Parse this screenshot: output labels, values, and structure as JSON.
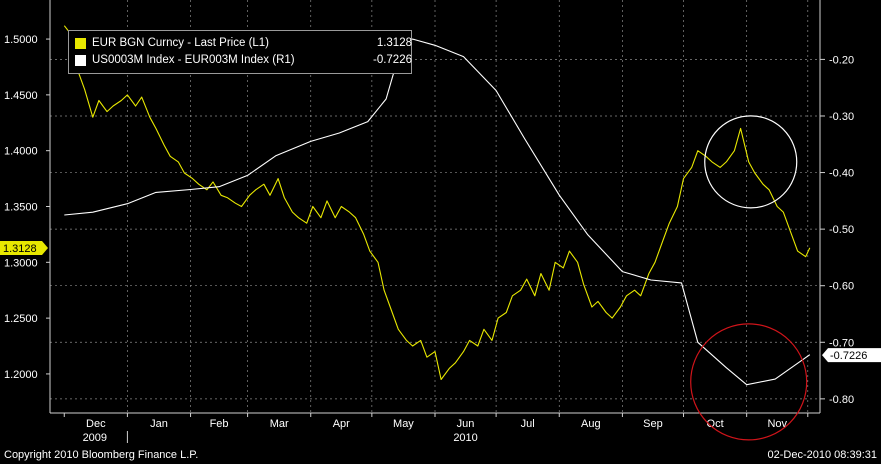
{
  "chart_data": {
    "type": "line",
    "x_axis": {
      "months": [
        "Dec",
        "Jan",
        "Feb",
        "Mar",
        "Apr",
        "May",
        "Jun",
        "Jul",
        "Aug",
        "Sep",
        "Oct",
        "Nov"
      ],
      "years": [
        "2009",
        "2010"
      ]
    },
    "left_axis": {
      "ticks": [
        "1.5000",
        "1.4500",
        "1.4000",
        "1.3500",
        "1.3000",
        "1.2500",
        "1.2000"
      ],
      "ylim": [
        1.165,
        1.535
      ],
      "last_value_tag": "1.3128"
    },
    "right_axis": {
      "ticks": [
        "-0.20",
        "-0.30",
        "-0.40",
        "-0.50",
        "-0.60",
        "-0.70",
        "-0.80"
      ],
      "ylim": [
        -0.825,
        -0.095
      ],
      "last_value_tag": "-0.7226"
    },
    "series": [
      {
        "name": "EUR BGN Curncy - Last Price (L1)",
        "last": "1.3128",
        "axis": "left",
        "color": "#e8e800",
        "x": [
          "2009-12-01",
          "2009-12-04",
          "2009-12-08",
          "2009-12-11",
          "2009-12-15",
          "2009-12-18",
          "2009-12-22",
          "2009-12-25",
          "2009-12-29",
          "2010-01-01",
          "2010-01-05",
          "2010-01-08",
          "2010-01-12",
          "2010-01-15",
          "2010-01-19",
          "2010-01-22",
          "2010-01-26",
          "2010-01-29",
          "2010-02-02",
          "2010-02-05",
          "2010-02-09",
          "2010-02-12",
          "2010-02-16",
          "2010-02-19",
          "2010-02-23",
          "2010-02-26",
          "2010-03-02",
          "2010-03-05",
          "2010-03-09",
          "2010-03-12",
          "2010-03-16",
          "2010-03-19",
          "2010-03-23",
          "2010-03-26",
          "2010-03-30",
          "2010-04-02",
          "2010-04-06",
          "2010-04-09",
          "2010-04-13",
          "2010-04-16",
          "2010-04-20",
          "2010-04-23",
          "2010-04-27",
          "2010-04-30",
          "2010-05-04",
          "2010-05-07",
          "2010-05-11",
          "2010-05-14",
          "2010-05-18",
          "2010-05-21",
          "2010-05-25",
          "2010-05-28",
          "2010-06-01",
          "2010-06-04",
          "2010-06-08",
          "2010-06-11",
          "2010-06-15",
          "2010-06-18",
          "2010-06-22",
          "2010-06-25",
          "2010-06-29",
          "2010-07-02",
          "2010-07-06",
          "2010-07-09",
          "2010-07-13",
          "2010-07-16",
          "2010-07-20",
          "2010-07-23",
          "2010-07-27",
          "2010-07-30",
          "2010-08-03",
          "2010-08-06",
          "2010-08-10",
          "2010-08-13",
          "2010-08-17",
          "2010-08-20",
          "2010-08-24",
          "2010-08-27",
          "2010-08-31",
          "2010-09-03",
          "2010-09-07",
          "2010-09-10",
          "2010-09-14",
          "2010-09-17",
          "2010-09-21",
          "2010-09-24",
          "2010-09-28",
          "2010-10-01",
          "2010-10-05",
          "2010-10-08",
          "2010-10-12",
          "2010-10-15",
          "2010-10-19",
          "2010-10-22",
          "2010-10-26",
          "2010-10-29",
          "2010-11-02",
          "2010-11-05",
          "2010-11-09",
          "2010-11-12",
          "2010-11-16",
          "2010-11-19",
          "2010-11-23",
          "2010-11-26",
          "2010-11-30",
          "2010-12-02"
        ],
        "values": [
          1.512,
          1.505,
          1.47,
          1.455,
          1.43,
          1.445,
          1.435,
          1.44,
          1.445,
          1.45,
          1.44,
          1.448,
          1.43,
          1.42,
          1.405,
          1.395,
          1.39,
          1.38,
          1.375,
          1.37,
          1.365,
          1.372,
          1.36,
          1.358,
          1.353,
          1.35,
          1.36,
          1.365,
          1.37,
          1.36,
          1.375,
          1.358,
          1.345,
          1.34,
          1.335,
          1.35,
          1.34,
          1.355,
          1.34,
          1.35,
          1.345,
          1.34,
          1.325,
          1.31,
          1.3,
          1.275,
          1.255,
          1.24,
          1.23,
          1.225,
          1.23,
          1.215,
          1.22,
          1.195,
          1.205,
          1.21,
          1.22,
          1.23,
          1.225,
          1.24,
          1.23,
          1.25,
          1.255,
          1.27,
          1.275,
          1.285,
          1.27,
          1.29,
          1.275,
          1.3,
          1.295,
          1.31,
          1.3,
          1.28,
          1.26,
          1.265,
          1.255,
          1.25,
          1.26,
          1.27,
          1.275,
          1.27,
          1.29,
          1.3,
          1.32,
          1.335,
          1.35,
          1.375,
          1.385,
          1.4,
          1.395,
          1.39,
          1.385,
          1.39,
          1.4,
          1.42,
          1.39,
          1.38,
          1.37,
          1.365,
          1.35,
          1.345,
          1.325,
          1.31,
          1.305,
          1.313
        ]
      },
      {
        "name": "US0003M Index - EUR003M Index (R1)",
        "last": "-0.7226",
        "axis": "right",
        "color": "#ffffff",
        "x": [
          "2009-12-01",
          "2009-12-15",
          "2010-01-01",
          "2010-01-15",
          "2010-02-01",
          "2010-02-15",
          "2010-03-01",
          "2010-03-15",
          "2010-04-01",
          "2010-04-15",
          "2010-04-29",
          "2010-05-08",
          "2010-05-12",
          "2010-05-15",
          "2010-05-22",
          "2010-06-01",
          "2010-06-15",
          "2010-07-01",
          "2010-07-15",
          "2010-08-01",
          "2010-08-15",
          "2010-09-01",
          "2010-09-15",
          "2010-09-30",
          "2010-10-08",
          "2010-10-22",
          "2010-11-01",
          "2010-11-15",
          "2010-12-02"
        ],
        "values": [
          -0.475,
          -0.47,
          -0.455,
          -0.435,
          -0.43,
          -0.425,
          -0.405,
          -0.37,
          -0.345,
          -0.33,
          -0.31,
          -0.27,
          -0.22,
          -0.16,
          -0.165,
          -0.175,
          -0.195,
          -0.255,
          -0.34,
          -0.44,
          -0.51,
          -0.575,
          -0.59,
          -0.595,
          -0.7,
          -0.745,
          -0.775,
          -0.765,
          -0.722
        ]
      }
    ],
    "legend_position": "top-left",
    "grid": true,
    "annotations": [
      {
        "type": "circle",
        "color": "#ffffff",
        "date": "2010-11-03",
        "value_left": 1.39,
        "target": "EUR BGN peak"
      },
      {
        "type": "circle",
        "color": "#d0141a",
        "date": "2010-11-02",
        "value_right": -0.77,
        "target": "spread trough"
      }
    ]
  },
  "footer": {
    "copyright": "Copyright 2010 Bloomberg Finance L.P.",
    "timestamp": "02-Dec-2010 08:39:31"
  },
  "colors": {
    "background": "#000000",
    "grid": "#8a8a8a",
    "eur_line": "#e8e800",
    "spread_line": "#ffffff",
    "highlight_circle_red": "#d0141a"
  }
}
